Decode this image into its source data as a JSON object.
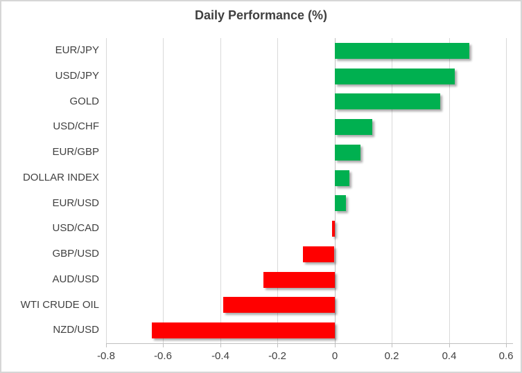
{
  "chart_data": {
    "type": "bar",
    "orientation": "horizontal",
    "title": "Daily Performance (%)",
    "categories": [
      "EUR/JPY",
      "USD/JPY",
      "GOLD",
      "USD/CHF",
      "EUR/GBP",
      "DOLLAR INDEX",
      "EUR/USD",
      "USD/CAD",
      "GBP/USD",
      "AUD/USD",
      "WTI CRUDE OIL",
      "NZD/USD"
    ],
    "values": [
      0.47,
      0.42,
      0.37,
      0.13,
      0.09,
      0.05,
      0.04,
      -0.01,
      -0.11,
      -0.25,
      -0.39,
      -0.64
    ],
    "xlabel": "",
    "ylabel": "",
    "xlim": [
      -0.8,
      0.6
    ],
    "x_ticks": [
      -0.8,
      -0.6,
      -0.4,
      -0.2,
      0,
      0.2,
      0.4,
      0.6
    ],
    "x_tick_labels": [
      "-0.8",
      "-0.6",
      "-0.4",
      "-0.2",
      "0",
      "0.2",
      "0.4",
      "0.6"
    ],
    "grid": true,
    "legend": false,
    "colors": {
      "positive": "#00B050",
      "negative": "#FF0000",
      "gridline": "#D9D9D9",
      "axis_line": "#BFBFBF",
      "text": "#404040",
      "border": "#D6D6D6",
      "background": "#FFFFFF"
    }
  }
}
